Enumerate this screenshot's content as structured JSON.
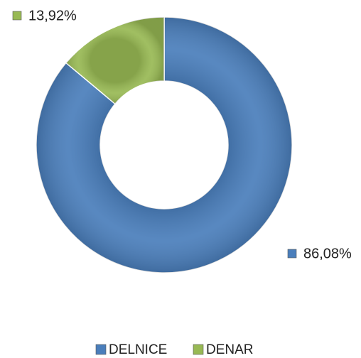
{
  "chart_data": {
    "type": "donut",
    "categories": [
      "DELNICE",
      "DENAR"
    ],
    "values": [
      86.08,
      13.92
    ],
    "value_labels": [
      "86,08%",
      "13,92%"
    ],
    "colors": [
      "#4a7ebb",
      "#98b954"
    ],
    "legend": "bottom"
  }
}
